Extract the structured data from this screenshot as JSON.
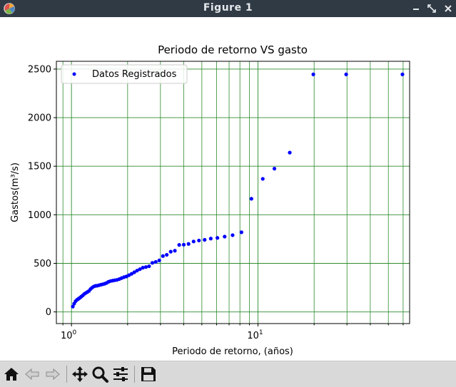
{
  "window": {
    "title": "Figure 1",
    "icons": {
      "app": "matplotlib-icon",
      "minimize": "minimize-icon",
      "maximize": "maximize-icon",
      "close": "close-icon"
    }
  },
  "toolbar": {
    "buttons": [
      {
        "name": "home-button",
        "icon": "home-icon"
      },
      {
        "name": "back-button",
        "icon": "arrow-left-icon"
      },
      {
        "name": "forward-button",
        "icon": "arrow-right-icon"
      },
      {
        "name": "pan-button",
        "icon": "move-icon"
      },
      {
        "name": "zoom-button",
        "icon": "magnifier-icon"
      },
      {
        "name": "configure-subplots-button",
        "icon": "sliders-icon"
      },
      {
        "name": "save-button",
        "icon": "floppy-disk-icon"
      }
    ]
  },
  "colors": {
    "titlebar": "#2f3a45",
    "grid": "#2e8b2e",
    "points": "#0000ff",
    "toolbar": "#d9d9d9"
  },
  "chart_data": {
    "type": "scatter",
    "title": "Periodo de retorno VS gasto",
    "xlabel": "Periodo de retorno, (años)",
    "ylabel": "Gastos(m³/s)",
    "xscale": "log",
    "xlim": [
      0.83,
      65
    ],
    "ylim": [
      -120,
      2580
    ],
    "xticks": [
      {
        "value": 1,
        "base": "10",
        "exp": "0"
      },
      {
        "value": 10,
        "base": "10",
        "exp": "1"
      }
    ],
    "yticks": [
      0,
      500,
      1000,
      1500,
      2000,
      2500
    ],
    "grid": "both (major and minor), green",
    "legend": {
      "label": "Datos Registrados",
      "position": "upper left"
    },
    "series": [
      {
        "name": "Datos Registrados",
        "color": "#0000ff",
        "x": [
          1.017,
          1.034,
          1.052,
          1.071,
          1.09,
          1.109,
          1.129,
          1.15,
          1.171,
          1.194,
          1.217,
          1.24,
          1.265,
          1.291,
          1.318,
          1.346,
          1.375,
          1.406,
          1.438,
          1.471,
          1.506,
          1.542,
          1.58,
          1.621,
          1.663,
          1.708,
          1.755,
          1.805,
          1.857,
          1.913,
          1.972,
          2.034,
          2.101,
          2.172,
          2.247,
          2.328,
          2.414,
          2.507,
          2.607,
          2.714,
          2.83,
          2.956,
          3.093,
          3.242,
          3.405,
          3.584,
          3.781,
          4.0,
          4.243,
          4.516,
          4.824,
          5.176,
          5.583,
          6.059,
          6.625,
          7.31,
          8.156,
          9.222,
          10.61,
          12.25,
          14.8,
          19.8,
          29.7,
          59.5
        ],
        "y": [
          55,
          85,
          110,
          125,
          135,
          145,
          158,
          170,
          185,
          195,
          205,
          215,
          235,
          250,
          262,
          268,
          270,
          275,
          280,
          285,
          290,
          298,
          310,
          318,
          322,
          326,
          330,
          338,
          348,
          358,
          365,
          378,
          392,
          408,
          425,
          440,
          455,
          462,
          470,
          505,
          515,
          530,
          575,
          588,
          620,
          630,
          690,
          692,
          700,
          725,
          735,
          742,
          755,
          762,
          775,
          790,
          820,
          1165,
          1370,
          1475,
          1640,
          2445,
          2445,
          2445
        ],
        "x_fix_note": ""
      }
    ]
  }
}
